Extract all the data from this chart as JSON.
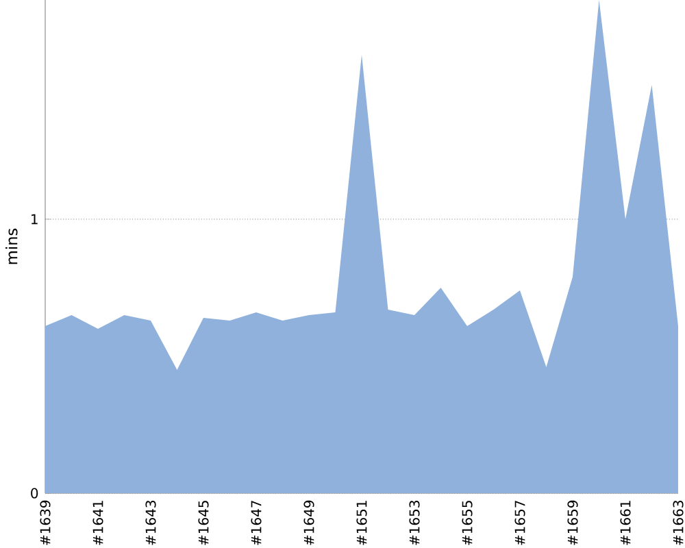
{
  "chart_data": {
    "type": "area",
    "ylabel": "mins",
    "categories": [
      "#1639",
      null,
      "#1641",
      null,
      "#1643",
      null,
      "#1645",
      null,
      "#1647",
      null,
      "#1649",
      null,
      "#1651",
      null,
      "#1653",
      null,
      "#1655",
      null,
      "#1657",
      null,
      "#1659",
      null,
      "#1661",
      null,
      "#1663"
    ],
    "values": [
      0.61,
      0.65,
      0.6,
      0.65,
      0.63,
      0.45,
      0.64,
      0.63,
      0.66,
      0.63,
      0.65,
      0.66,
      1.6,
      0.67,
      0.65,
      0.75,
      0.61,
      0.67,
      0.74,
      0.46,
      0.79,
      1.8,
      1.0,
      1.49,
      0.61
    ],
    "color": "#8fb1db",
    "ylim": [
      0,
      1.8
    ],
    "yticks": [
      0,
      1
    ],
    "grid": "y"
  }
}
